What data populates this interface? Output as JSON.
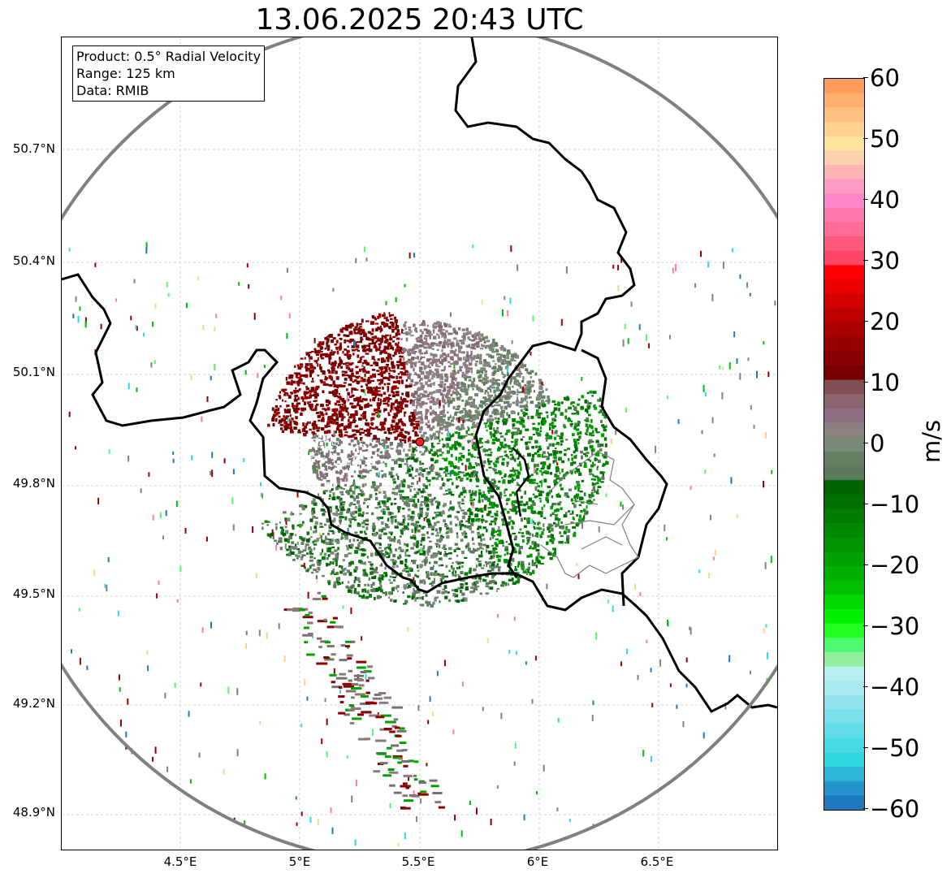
{
  "title": "13.06.2025 20:43 UTC",
  "info_box": {
    "product": "Product: 0.5° Radial Velocity",
    "range": "Range: 125 km",
    "data": "Data: RMIB"
  },
  "map": {
    "lat_ticks": [
      "50.7°N",
      "50.4°N",
      "50.1°N",
      "49.8°N",
      "49.5°N",
      "49.2°N",
      "48.9°N"
    ],
    "lon_ticks": [
      "4.5°E",
      "5°E",
      "5.5°E",
      "6°E",
      "6.5°E"
    ],
    "lat_range": [
      48.8,
      50.98
    ],
    "lon_range": [
      4.0,
      7.0
    ],
    "radar_site": {
      "lon": 5.5,
      "lat": 49.91
    },
    "range_ring_color": "#808080",
    "border_color": "#000000",
    "grid": "dashed light grey"
  },
  "colorbar": {
    "label": "m/s",
    "ticks": [
      "60",
      "50",
      "40",
      "30",
      "20",
      "10",
      "0",
      "−10",
      "−20",
      "−30",
      "−40",
      "−50",
      "−60"
    ],
    "range": [
      -60,
      60
    ],
    "colors": [
      "#ff9c5c",
      "#ffb070",
      "#ffc080",
      "#ffd28e",
      "#ffe29e",
      "#ffd0b0",
      "#ffb4b4",
      "#ff9ac4",
      "#ff86c8",
      "#ff78b0",
      "#ff6a96",
      "#ff5a7c",
      "#ff4664",
      "#ff0000",
      "#ea0000",
      "#d20000",
      "#bc0000",
      "#a80000",
      "#960000",
      "#880000",
      "#780000",
      "#845058",
      "#8c6470",
      "#907080",
      "#8c8080",
      "#7a8a7a",
      "#647e64",
      "#5c7a5c",
      "#006400",
      "#007000",
      "#007c00",
      "#008800",
      "#009400",
      "#00a000",
      "#00b000",
      "#00c000",
      "#00d800",
      "#00f000",
      "#20ff20",
      "#50fa70",
      "#90f0a0",
      "#b8f0f0",
      "#a8eaf0",
      "#90e4ec",
      "#78e0ea",
      "#60dce8",
      "#48dae4",
      "#30d8e0",
      "#2ab6d4",
      "#2494cc",
      "#1e7ac0"
    ]
  }
}
